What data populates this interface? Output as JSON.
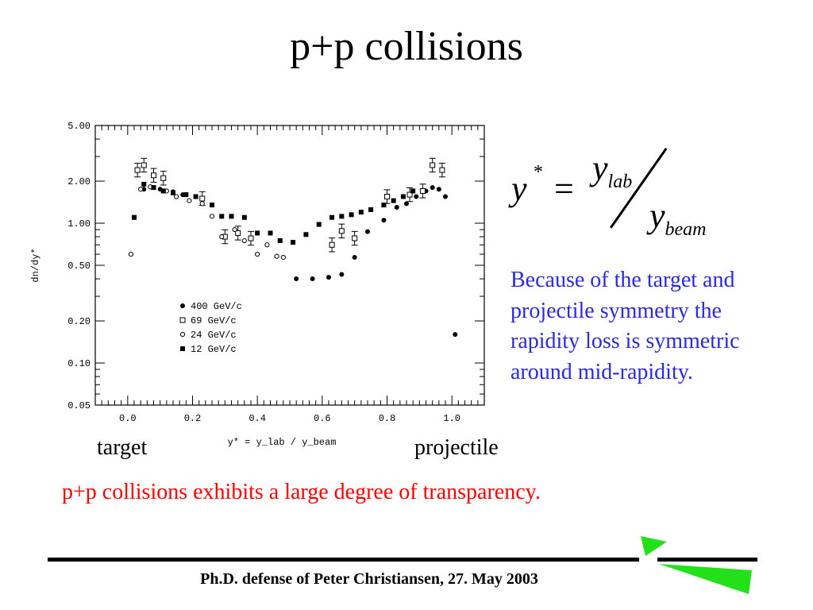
{
  "slide": {
    "title": "p+p collisions",
    "formula": {
      "lhs": "y",
      "lhs_sup": "*",
      "equals": "=",
      "num": "y",
      "num_sub": "lab",
      "den": "y",
      "den_sub": "beam"
    },
    "explanation": "Because of the target and projectile symmetry the rapidity loss is symmetric around mid-rapidity.",
    "label_target": "target",
    "label_projectile": "projectile",
    "transparency_note": "p+p collisions exhibits a large degree of transparency.",
    "footer": "Ph.D. defense of Peter Christiansen, 27. May 2003",
    "colors": {
      "explanation": "#2a2ae0",
      "note": "#ff0000",
      "logo": "#22e01a"
    }
  },
  "chart_data": {
    "type": "scatter",
    "xlabel": "y* = y_lab / y_beam",
    "ylabel": "dn/dy*",
    "xscale": "linear",
    "yscale": "log",
    "xlim": [
      -0.1,
      1.1
    ],
    "ylim": [
      0.05,
      5.0
    ],
    "x_ticks": [
      "0.0",
      "0.2",
      "0.4",
      "0.6",
      "0.8",
      "1.0"
    ],
    "y_ticks": [
      "0.05",
      "0.10",
      "0.20",
      "0.50",
      "1.00",
      "2.00",
      "5.00"
    ],
    "grid": false,
    "legend_position": "lower-left",
    "series": [
      {
        "name": "400 GeV/c",
        "marker": "filled-circle",
        "x": [
          0.02,
          0.05,
          0.08,
          0.1,
          0.14,
          0.17,
          0.52,
          0.57,
          0.62,
          0.66,
          0.7,
          0.74,
          0.79,
          0.83,
          0.86,
          0.89,
          0.92,
          0.94,
          0.96,
          0.98,
          1.01
        ],
        "y": [
          1.1,
          1.75,
          1.8,
          1.75,
          1.68,
          1.6,
          0.4,
          0.4,
          0.41,
          0.43,
          0.57,
          0.87,
          1.05,
          1.3,
          1.38,
          1.55,
          1.7,
          1.8,
          1.75,
          1.55,
          0.16
        ]
      },
      {
        "name": "69 GeV/c",
        "marker": "open-square",
        "x": [
          0.03,
          0.05,
          0.08,
          0.11,
          0.23,
          0.3,
          0.34,
          0.38,
          0.63,
          0.66,
          0.7,
          0.8,
          0.87,
          0.91,
          0.94,
          0.97
        ],
        "y": [
          2.4,
          2.6,
          2.2,
          2.1,
          1.5,
          0.8,
          0.85,
          0.78,
          0.7,
          0.88,
          0.78,
          1.55,
          1.6,
          1.7,
          2.6,
          2.4
        ]
      },
      {
        "name": "24 GeV/c",
        "marker": "open-circle",
        "x": [
          0.01,
          0.04,
          0.07,
          0.12,
          0.15,
          0.19,
          0.23,
          0.26,
          0.29,
          0.33,
          0.36,
          0.4,
          0.43,
          0.46,
          0.48
        ],
        "y": [
          0.6,
          1.75,
          1.82,
          1.7,
          1.55,
          1.45,
          1.38,
          1.12,
          0.8,
          0.9,
          0.75,
          0.6,
          0.7,
          0.58,
          0.57
        ]
      },
      {
        "name": "12 GeV/c",
        "marker": "filled-square",
        "x": [
          0.02,
          0.05,
          0.08,
          0.11,
          0.14,
          0.18,
          0.21,
          0.26,
          0.29,
          0.32,
          0.36,
          0.4,
          0.44,
          0.47,
          0.51,
          0.55,
          0.59,
          0.63,
          0.66,
          0.69,
          0.72,
          0.75,
          0.79,
          0.82,
          0.85,
          0.88
        ],
        "y": [
          1.1,
          1.9,
          1.8,
          1.7,
          1.65,
          1.6,
          1.55,
          1.35,
          1.12,
          1.12,
          1.1,
          0.85,
          0.85,
          0.75,
          0.73,
          0.83,
          0.98,
          1.1,
          1.12,
          1.15,
          1.2,
          1.25,
          1.35,
          1.45,
          1.55,
          1.7
        ]
      }
    ]
  }
}
